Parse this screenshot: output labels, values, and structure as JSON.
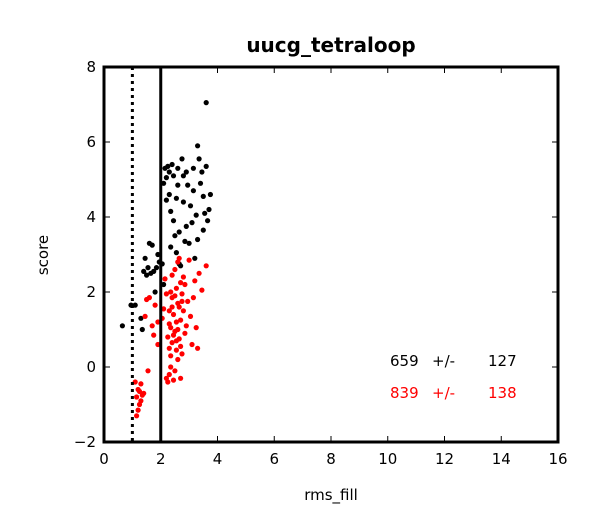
{
  "chart_data": {
    "type": "scatter",
    "title": "uucg_tetraloop",
    "xlabel": "rms_fill",
    "ylabel": "score",
    "xlim": [
      0,
      16
    ],
    "ylim": [
      -2,
      8
    ],
    "xticks": [
      "0",
      "2",
      "4",
      "6",
      "8",
      "10",
      "12",
      "14",
      "16"
    ],
    "yticks": [
      "−2",
      "0",
      "2",
      "4",
      "6",
      "8"
    ],
    "grid": false,
    "vlines": [
      {
        "x": 1.0,
        "style": "dotted",
        "color": "#000000"
      },
      {
        "x": 2.0,
        "style": "solid",
        "color": "#000000"
      }
    ],
    "annotations": [
      {
        "parts": [
          "659",
          "+/-",
          "127"
        ],
        "color": "#000000"
      },
      {
        "parts": [
          "839",
          "+/-",
          "138"
        ],
        "color": "#ff0000"
      }
    ],
    "series": [
      {
        "color": "#000000",
        "points": [
          [
            0.65,
            1.1
          ],
          [
            0.95,
            1.65
          ],
          [
            1.1,
            1.65
          ],
          [
            1.3,
            1.3
          ],
          [
            1.35,
            1.0
          ],
          [
            1.4,
            2.55
          ],
          [
            1.45,
            2.9
          ],
          [
            1.5,
            2.45
          ],
          [
            1.55,
            2.65
          ],
          [
            1.6,
            3.3
          ],
          [
            1.65,
            2.5
          ],
          [
            1.7,
            3.25
          ],
          [
            1.75,
            2.55
          ],
          [
            1.8,
            2.0
          ],
          [
            1.85,
            2.65
          ],
          [
            1.9,
            3.0
          ],
          [
            1.95,
            2.8
          ],
          [
            2.05,
            2.75
          ],
          [
            2.1,
            2.2
          ],
          [
            2.1,
            4.9
          ],
          [
            2.15,
            5.3
          ],
          [
            2.2,
            5.05
          ],
          [
            2.2,
            4.45
          ],
          [
            2.25,
            5.35
          ],
          [
            2.3,
            5.2
          ],
          [
            2.3,
            4.6
          ],
          [
            2.35,
            4.15
          ],
          [
            2.4,
            5.4
          ],
          [
            2.45,
            5.1
          ],
          [
            2.45,
            3.9
          ],
          [
            2.5,
            3.5
          ],
          [
            2.55,
            3.05
          ],
          [
            2.55,
            4.5
          ],
          [
            2.6,
            5.3
          ],
          [
            2.65,
            2.75
          ],
          [
            2.65,
            3.6
          ],
          [
            2.7,
            2.7
          ],
          [
            2.75,
            5.55
          ],
          [
            2.8,
            4.4
          ],
          [
            2.85,
            3.35
          ],
          [
            2.9,
            5.2
          ],
          [
            2.95,
            4.85
          ],
          [
            3.0,
            3.3
          ],
          [
            3.05,
            4.3
          ],
          [
            3.1,
            3.85
          ],
          [
            3.15,
            4.7
          ],
          [
            3.2,
            2.9
          ],
          [
            3.25,
            4.05
          ],
          [
            3.3,
            5.9
          ],
          [
            3.35,
            5.55
          ],
          [
            3.4,
            4.9
          ],
          [
            3.45,
            5.2
          ],
          [
            3.5,
            4.55
          ],
          [
            3.55,
            4.1
          ],
          [
            3.6,
            7.05
          ],
          [
            3.65,
            3.9
          ],
          [
            3.7,
            4.2
          ],
          [
            3.75,
            4.6
          ],
          [
            2.35,
            3.2
          ],
          [
            2.6,
            4.85
          ],
          [
            2.9,
            3.75
          ],
          [
            3.15,
            5.3
          ],
          [
            3.5,
            3.65
          ],
          [
            2.8,
            5.1
          ],
          [
            3.3,
            3.4
          ],
          [
            3.6,
            5.35
          ]
        ]
      },
      {
        "color": "#ff0000",
        "points": [
          [
            1.1,
            -0.4
          ],
          [
            1.15,
            -1.3
          ],
          [
            1.15,
            -0.8
          ],
          [
            1.2,
            -0.6
          ],
          [
            1.25,
            -1.0
          ],
          [
            1.3,
            -0.9
          ],
          [
            1.2,
            -1.15
          ],
          [
            1.35,
            -0.75
          ],
          [
            1.25,
            -0.65
          ],
          [
            1.3,
            -0.45
          ],
          [
            1.4,
            -0.7
          ],
          [
            1.45,
            1.35
          ],
          [
            1.5,
            1.8
          ],
          [
            1.55,
            -0.1
          ],
          [
            1.6,
            1.85
          ],
          [
            1.7,
            1.1
          ],
          [
            1.75,
            0.85
          ],
          [
            1.8,
            1.65
          ],
          [
            1.9,
            0.6
          ],
          [
            1.9,
            1.2
          ],
          [
            2.05,
            1.3
          ],
          [
            2.1,
            1.55
          ],
          [
            2.15,
            2.35
          ],
          [
            2.2,
            1.95
          ],
          [
            2.2,
            -0.3
          ],
          [
            2.25,
            0.8
          ],
          [
            2.25,
            -0.4
          ],
          [
            2.3,
            1.5
          ],
          [
            2.3,
            0.5
          ],
          [
            2.3,
            -0.2
          ],
          [
            2.35,
            1.05
          ],
          [
            2.35,
            0.0
          ],
          [
            2.4,
            0.65
          ],
          [
            2.4,
            1.85
          ],
          [
            2.45,
            1.4
          ],
          [
            2.45,
            -0.35
          ],
          [
            2.5,
            0.95
          ],
          [
            2.5,
            2.6
          ],
          [
            2.55,
            0.45
          ],
          [
            2.55,
            2.1
          ],
          [
            2.6,
            0.2
          ],
          [
            2.6,
            1.7
          ],
          [
            2.65,
            0.75
          ],
          [
            2.65,
            2.9
          ],
          [
            2.7,
            1.25
          ],
          [
            2.7,
            -0.3
          ],
          [
            2.75,
            1.95
          ],
          [
            2.75,
            0.35
          ],
          [
            2.8,
            1.5
          ],
          [
            2.8,
            2.4
          ],
          [
            2.85,
            0.9
          ],
          [
            2.85,
            2.2
          ],
          [
            2.9,
            1.1
          ],
          [
            2.95,
            1.75
          ],
          [
            3.0,
            2.85
          ],
          [
            3.05,
            1.35
          ],
          [
            3.1,
            0.6
          ],
          [
            3.15,
            1.85
          ],
          [
            3.2,
            2.3
          ],
          [
            3.25,
            1.05
          ],
          [
            3.3,
            0.5
          ],
          [
            3.35,
            2.5
          ],
          [
            3.45,
            2.05
          ],
          [
            3.6,
            2.7
          ],
          [
            2.4,
            2.45
          ],
          [
            2.55,
            1.2
          ],
          [
            2.7,
            2.25
          ],
          [
            2.35,
            0.3
          ],
          [
            2.5,
            -0.1
          ],
          [
            2.45,
            0.85
          ],
          [
            2.6,
            1.0
          ],
          [
            2.65,
            1.6
          ],
          [
            2.4,
            1.6
          ],
          [
            2.55,
            0.7
          ],
          [
            2.7,
            0.55
          ],
          [
            2.5,
            1.9
          ],
          [
            2.3,
            1.15
          ],
          [
            2.6,
            2.8
          ],
          [
            2.35,
            2.0
          ],
          [
            2.75,
            1.75
          ]
        ]
      }
    ]
  }
}
